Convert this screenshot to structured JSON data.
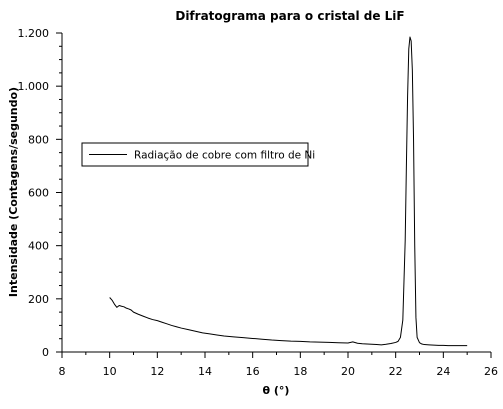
{
  "chart_data": {
    "type": "line",
    "title": "Difratograma para o cristal de LiF",
    "xlabel": "θ (°)",
    "ylabel": "Intensidade (Contagens/segundo)",
    "xlim": [
      8,
      26
    ],
    "ylim": [
      0,
      1200
    ],
    "xticks": [
      8,
      10,
      12,
      14,
      16,
      18,
      20,
      22,
      24,
      26
    ],
    "xtick_labels": [
      "8",
      "10",
      "12",
      "14",
      "16",
      "18",
      "20",
      "22",
      "24",
      "26"
    ],
    "yticks": [
      0,
      200,
      400,
      600,
      800,
      1000,
      1200
    ],
    "ytick_labels": [
      "0",
      "200",
      "400",
      "600",
      "800",
      "1.000",
      "1.200"
    ],
    "grid": false,
    "legend_position": "left",
    "colors": {
      "line": "#000000",
      "axes": "#000000",
      "background": "#ffffff"
    },
    "series": [
      {
        "name": "Radiação de cobre com filtro de Ni",
        "x": [
          10.0,
          10.1,
          10.2,
          10.3,
          10.4,
          10.5,
          10.6,
          10.7,
          10.8,
          10.9,
          11.0,
          11.2,
          11.4,
          11.6,
          11.8,
          12.0,
          12.2,
          12.4,
          12.6,
          12.8,
          13.0,
          13.3,
          13.6,
          13.9,
          14.2,
          14.5,
          14.8,
          15.2,
          15.6,
          16.0,
          16.4,
          16.8,
          17.2,
          17.6,
          18.0,
          18.4,
          18.8,
          19.2,
          19.6,
          20.0,
          20.2,
          20.4,
          20.6,
          20.8,
          21.0,
          21.2,
          21.4,
          21.6,
          21.8,
          22.0,
          22.1,
          22.2,
          22.3,
          22.4,
          22.45,
          22.5,
          22.55,
          22.6,
          22.65,
          22.7,
          22.75,
          22.8,
          22.85,
          22.9,
          23.0,
          23.1,
          23.2,
          23.4,
          23.6,
          23.8,
          24.0,
          24.2,
          24.4,
          24.6,
          24.8,
          25.0
        ],
        "y": [
          205,
          195,
          180,
          168,
          175,
          172,
          170,
          165,
          162,
          158,
          150,
          142,
          135,
          128,
          122,
          118,
          112,
          106,
          100,
          95,
          90,
          84,
          78,
          72,
          68,
          64,
          60,
          57,
          54,
          51,
          48,
          45,
          43,
          41,
          40,
          38,
          37,
          36,
          35,
          34,
          38,
          33,
          31,
          30,
          29,
          28,
          27,
          29,
          32,
          36,
          40,
          55,
          120,
          420,
          700,
          960,
          1140,
          1185,
          1170,
          1060,
          800,
          400,
          130,
          55,
          35,
          30,
          28,
          27,
          26,
          25,
          25,
          24,
          24,
          24,
          24,
          24
        ]
      }
    ]
  }
}
